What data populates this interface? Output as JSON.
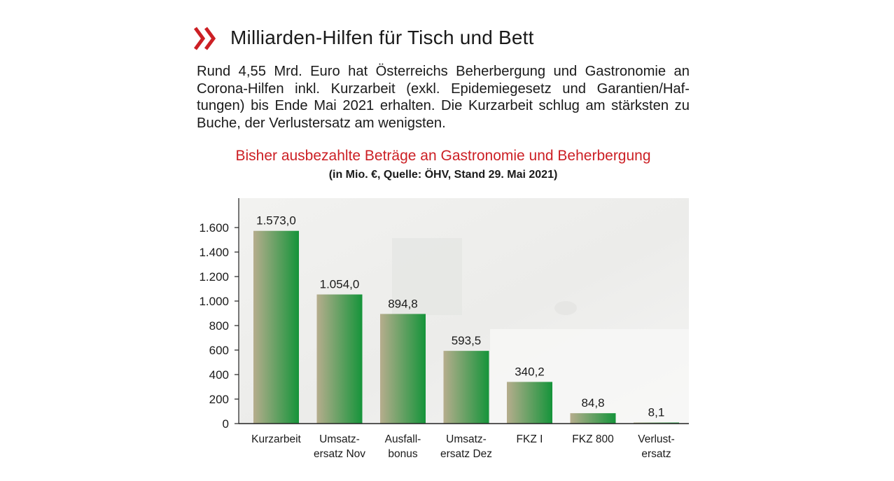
{
  "header": {
    "title": "Milliarden-Hilfen für Tisch und Bett",
    "accent_color": "#cc1f24",
    "icon": "double-chevron-right-icon"
  },
  "intro": "Rund 4,55 Mrd. Euro hat Österreichs Beherbergung und Gastronomie an Corona-Hilfen inkl. Kurzarbeit (exkl. Epidemiegesetz und Garantien/Haf­tungen) bis Ende Mai 2021 erhalten. Die Kurzarbeit schlug am stärksten zu Buche, der Verlustersatz am wenigsten.",
  "chart_data": {
    "type": "bar",
    "title": "Bisher ausbezahlte Beträge an Gastronomie und Beherbergung",
    "subtitle": "(in Mio. €, Quelle: ÖHV, Stand 29. Mai 2021)",
    "categories": [
      [
        "Kurzarbeit"
      ],
      [
        "Umsatz-",
        "ersatz Nov"
      ],
      [
        "Ausfall-",
        "bonus"
      ],
      [
        "Umsatz-",
        "ersatz Dez"
      ],
      [
        "FKZ I"
      ],
      [
        "FKZ 800"
      ],
      [
        "Verlust-",
        "ersatz"
      ]
    ],
    "values": [
      1573.0,
      1054.0,
      894.8,
      593.5,
      340.2,
      84.8,
      8.1
    ],
    "value_labels": [
      "1.573,0",
      "1.054,0",
      "894,8",
      "593,5",
      "340,2",
      "84,8",
      "8,1"
    ],
    "yticks": [
      0,
      200,
      400,
      600,
      800,
      1000,
      1200,
      1400,
      1600
    ],
    "ytick_labels": [
      "0",
      "200",
      "400",
      "600",
      "800",
      "1.000",
      "1.200",
      "1.400",
      "1.600"
    ],
    "ylim": [
      0,
      1820
    ],
    "grid": false,
    "bar_colors": {
      "left": "#b6ad8d",
      "right": "#15943a"
    },
    "background_color": "#eeefee"
  }
}
